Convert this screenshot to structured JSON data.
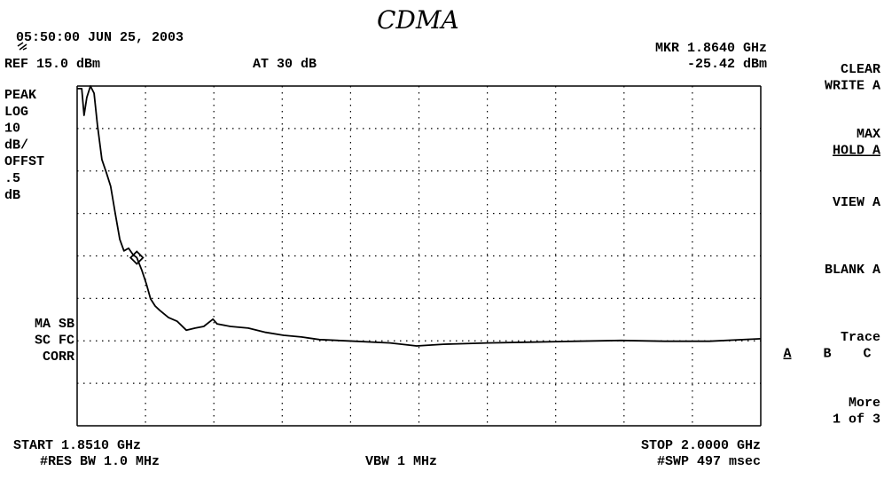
{
  "chart_data": {
    "type": "line",
    "title": "CDMA",
    "timestamp": "05:50:00 JUN 25, 2003",
    "ref_label": "REF 15.0 dBm",
    "atten_label": "AT 30 dB",
    "marker_label": "MKR 1.8640 GHz",
    "marker_value_label": "-25.42 dBm",
    "left_panel": [
      "PEAK",
      "LOG",
      "10",
      "dB/",
      "OFFST",
      ".5",
      "dB"
    ],
    "left_lower": [
      "MA SB",
      "SC FC",
      "CORR"
    ],
    "softkeys": [
      {
        "lines": [
          "CLEAR",
          "WRITE A"
        ]
      },
      {
        "lines": [
          "MAX",
          "HOLD A"
        ]
      },
      {
        "lines": [
          "VIEW A"
        ]
      },
      {
        "lines": [
          "BLANK A"
        ]
      },
      {
        "lines": [
          "Trace"
        ],
        "options": [
          "A",
          "B",
          "C"
        ]
      },
      {
        "lines": [
          "More",
          "1 of 3"
        ]
      }
    ],
    "start_label": "START 1.8510 GHz",
    "rbw_label": "#RES BW 1.0 MHz",
    "vbw_label": "VBW 1 MHz",
    "stop_label": "STOP 2.0000 GHz",
    "sweep_label": "#SWP 497 msec",
    "x": [
      1.851,
      1.852,
      1.8525,
      1.8531,
      1.8539,
      1.8547,
      1.8554,
      1.8564,
      1.8574,
      1.8583,
      1.8593,
      1.8603,
      1.8612,
      1.8622,
      1.8632,
      1.864,
      1.8651,
      1.8661,
      1.867,
      1.868,
      1.869,
      1.8709,
      1.8728,
      1.8748,
      1.8767,
      1.8786,
      1.8806,
      1.8815,
      1.8844,
      1.8883,
      1.8921,
      1.896,
      1.8999,
      1.9038,
      1.9115,
      1.9192,
      1.925,
      1.9308,
      1.9405,
      1.9501,
      1.9598,
      1.9695,
      1.9791,
      1.9888,
      2.0
    ],
    "series": [
      {
        "name": "A",
        "color": "#000000",
        "values": [
          14.4,
          14.4,
          8.1,
          12.3,
          15.0,
          13.3,
          6.0,
          -2.3,
          -5.5,
          -8.6,
          -14.9,
          -21.1,
          -23.8,
          -23.2,
          -24.7,
          -25.4,
          -28.4,
          -31.6,
          -35.1,
          -36.8,
          -37.8,
          -39.5,
          -40.4,
          -42.5,
          -42.0,
          -41.6,
          -39.9,
          -41.0,
          -41.6,
          -42.0,
          -43.0,
          -43.7,
          -44.1,
          -44.7,
          -45.1,
          -45.5,
          -46.2,
          -45.8,
          -45.5,
          -45.3,
          -45.1,
          -44.9,
          -45.1,
          -45.1,
          -44.5
        ]
      }
    ],
    "marker": {
      "x": 1.864,
      "y": -25.42
    },
    "xlim": [
      1.851,
      2.0
    ],
    "ylim": [
      -65,
      15
    ],
    "xticks": [
      1.851,
      1.8659,
      1.8808,
      1.8957,
      1.9106,
      1.9255,
      1.9404,
      1.9553,
      1.9702,
      1.9851,
      2.0
    ],
    "yticks": [
      -65,
      -55,
      -45,
      -35,
      -25,
      -15,
      -5,
      5,
      15
    ],
    "grid": true
  }
}
